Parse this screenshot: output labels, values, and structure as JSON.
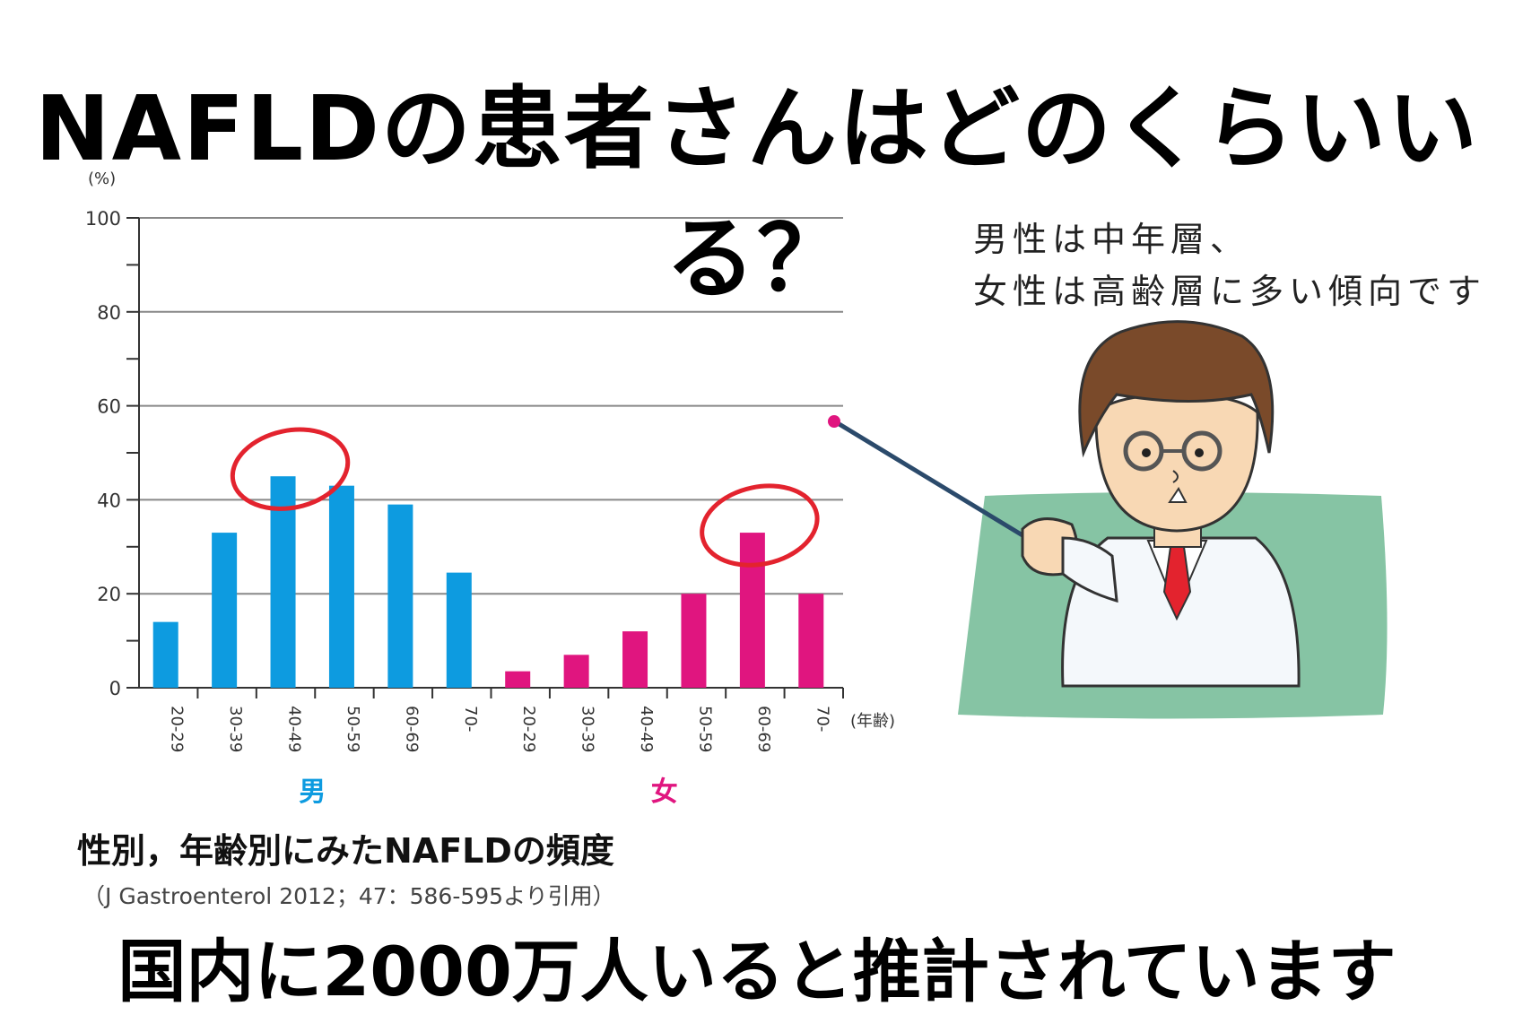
{
  "title": "NAFLDの患者さんはどのくらいいる？",
  "speech_lines": [
    "男性は中年層、",
    "女性は高齢層に多い傾向です"
  ],
  "caption": {
    "title": "性別，年齢別にみたNAFLDの頻度",
    "source": "（J Gastroenterol 2012；47：586-595より引用）"
  },
  "bottom_text": "国内に2000万人いると推計されています",
  "colors": {
    "male": "#0d9be0",
    "female": "#e0157f",
    "circle": "#e3232e",
    "board": "#86c4a4",
    "grid": "#888888"
  },
  "chart_data": {
    "type": "bar",
    "ylabel": "(%)",
    "xlabel": "(年齢)",
    "ylim": [
      0,
      100
    ],
    "yticks": [
      0,
      20,
      40,
      60,
      80,
      100
    ],
    "grid": true,
    "group_labels": [
      "男",
      "女"
    ],
    "groups": [
      {
        "name": "男",
        "categories": [
          "20-29",
          "30-39",
          "40-49",
          "50-59",
          "60-69",
          "70-"
        ],
        "values": [
          14,
          33,
          45,
          43,
          39,
          24.5
        ]
      },
      {
        "name": "女",
        "categories": [
          "20-29",
          "30-39",
          "40-49",
          "50-59",
          "60-69",
          "70-"
        ],
        "values": [
          3.5,
          7,
          12,
          20,
          33,
          20
        ]
      }
    ],
    "highlighted": [
      {
        "group": "男",
        "category": "40-49"
      },
      {
        "group": "女",
        "category": "60-69"
      }
    ]
  }
}
